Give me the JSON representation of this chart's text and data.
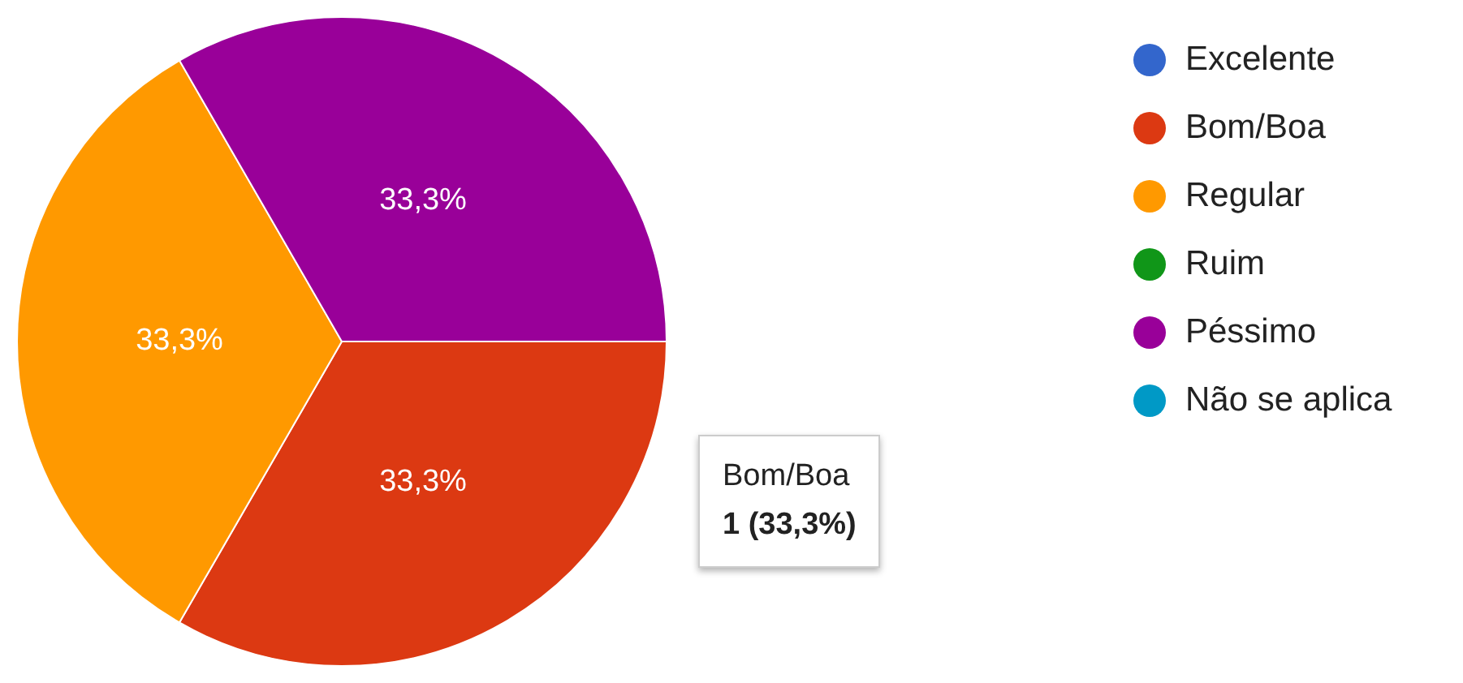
{
  "chart_data": {
    "type": "pie",
    "categories": [
      "Excelente",
      "Bom/Boa",
      "Regular",
      "Ruim",
      "Péssimo",
      "Não se aplica"
    ],
    "values": [
      0,
      33.3,
      33.3,
      0,
      33.3,
      0
    ],
    "colors": [
      "#3366cc",
      "#dc3912",
      "#ff9900",
      "#109618",
      "#990099",
      "#0099c6"
    ],
    "value_labels": [
      null,
      "33,3%",
      "33,3%",
      null,
      "33,3%",
      null
    ],
    "legend": "top right",
    "annotations": [
      "Bom/Boa",
      "1 (33,3%)"
    ]
  }
}
